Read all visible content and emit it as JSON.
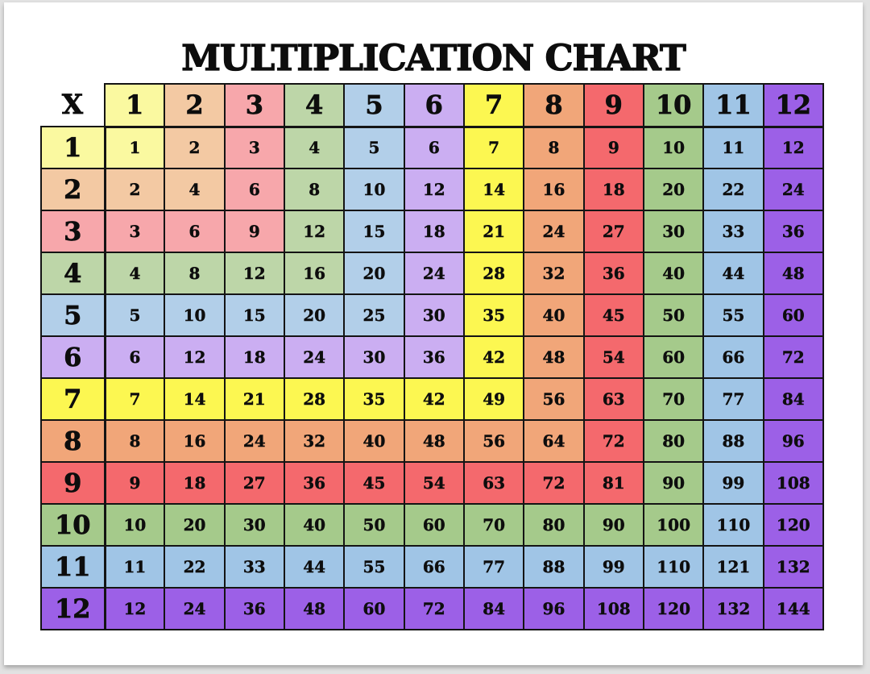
{
  "title": "MULTIPLICATION CHART",
  "chart_data": {
    "type": "table",
    "title": "MULTIPLICATION CHART",
    "corner_label": "X",
    "column_headers": [
      "1",
      "2",
      "3",
      "4",
      "5",
      "6",
      "7",
      "8",
      "9",
      "10",
      "11",
      "12"
    ],
    "row_headers": [
      "1",
      "2",
      "3",
      "4",
      "5",
      "6",
      "7",
      "8",
      "9",
      "10",
      "11",
      "12"
    ],
    "values": [
      [
        1,
        2,
        3,
        4,
        5,
        6,
        7,
        8,
        9,
        10,
        11,
        12
      ],
      [
        2,
        4,
        6,
        8,
        10,
        12,
        14,
        16,
        18,
        20,
        22,
        24
      ],
      [
        3,
        6,
        9,
        12,
        15,
        18,
        21,
        24,
        27,
        30,
        33,
        36
      ],
      [
        4,
        8,
        12,
        16,
        20,
        24,
        28,
        32,
        36,
        40,
        44,
        48
      ],
      [
        5,
        10,
        15,
        20,
        25,
        30,
        35,
        40,
        45,
        50,
        55,
        60
      ],
      [
        6,
        12,
        18,
        24,
        30,
        36,
        42,
        48,
        54,
        60,
        66,
        72
      ],
      [
        7,
        14,
        21,
        28,
        35,
        42,
        49,
        56,
        63,
        70,
        77,
        84
      ],
      [
        8,
        16,
        24,
        32,
        40,
        48,
        56,
        64,
        72,
        80,
        88,
        96
      ],
      [
        9,
        18,
        27,
        36,
        45,
        54,
        63,
        72,
        81,
        90,
        99,
        108
      ],
      [
        10,
        20,
        30,
        40,
        50,
        60,
        70,
        80,
        90,
        100,
        110,
        120
      ],
      [
        11,
        22,
        33,
        44,
        55,
        66,
        77,
        88,
        99,
        110,
        121,
        132
      ],
      [
        12,
        24,
        36,
        48,
        60,
        72,
        84,
        96,
        108,
        120,
        132,
        144
      ]
    ],
    "palette": {
      "1": "#FAF9A0",
      "2": "#F3C9A3",
      "3": "#F7A7AB",
      "4": "#BDD6A8",
      "5": "#B2CFE9",
      "6": "#CBAEF2",
      "7": "#FCF751",
      "8": "#F1A679",
      "9": "#F4696D",
      "10": "#A5CA8B",
      "11": "#A0C5E6",
      "12": "#9C60E7"
    },
    "color_rule": "cell background = palette[max(row, col)]",
    "text_color": "#0d0d0d",
    "grid_color": "#141414",
    "page_background": "#ffffff",
    "margin_background": "#e2e2e2"
  }
}
